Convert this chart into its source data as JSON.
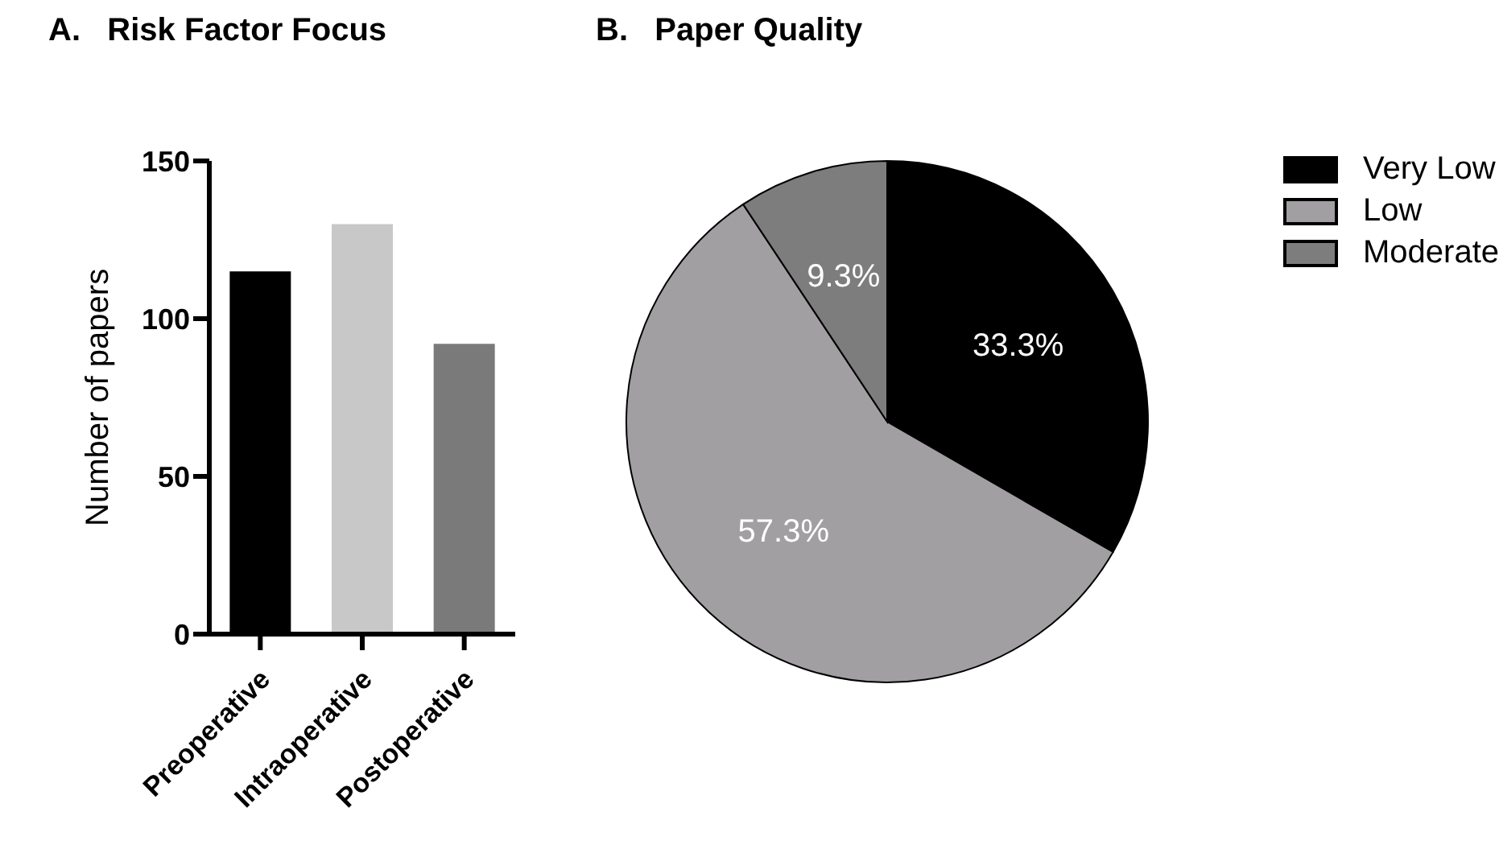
{
  "chart_data": [
    {
      "type": "bar",
      "title": "A.   Risk Factor Focus",
      "ylabel": "Number of papers",
      "categories": [
        "Preoperative",
        "Intraoperative",
        "Postoperative"
      ],
      "values": [
        115,
        130,
        92
      ],
      "colors": [
        "#000000",
        "#c8c8c8",
        "#7a7a7a"
      ],
      "ylim": [
        0,
        150
      ],
      "yticks": [
        0,
        50,
        100,
        150
      ],
      "grid": false
    },
    {
      "type": "pie",
      "title": "B.   Paper Quality",
      "categories": [
        "Very Low",
        "Low",
        "Moderate"
      ],
      "values": [
        33.3,
        57.3,
        9.3
      ],
      "colors": [
        "#000000",
        "#a29fa3",
        "#7d7d7d"
      ],
      "value_labels": [
        "33.3%",
        "57.3%",
        "9.3%"
      ],
      "legend": "right"
    }
  ]
}
